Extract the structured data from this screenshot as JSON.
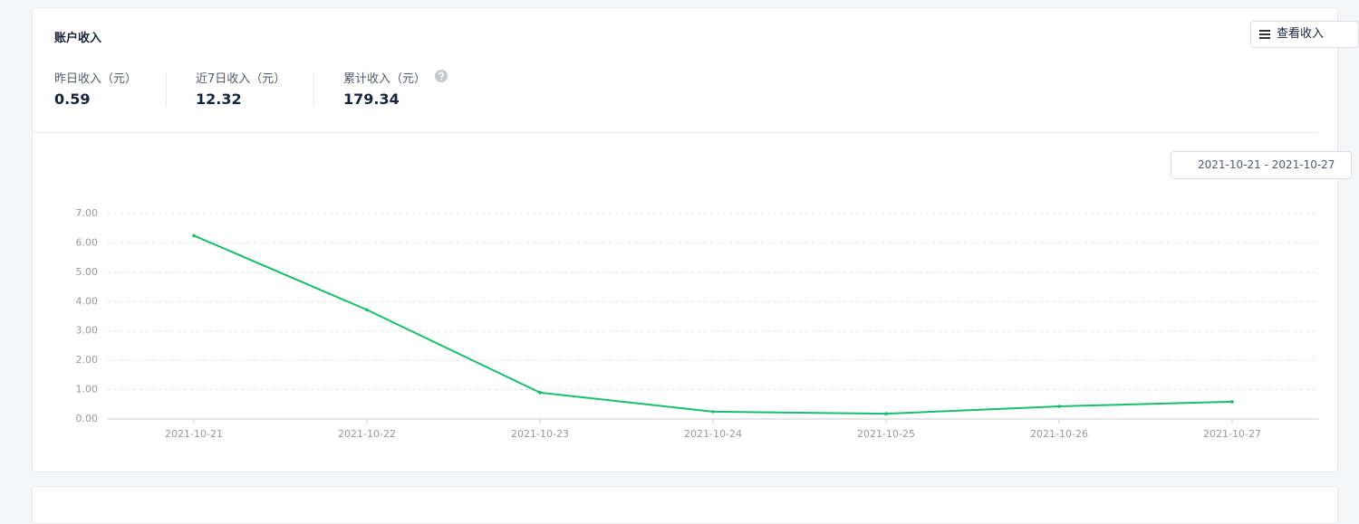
{
  "header": {
    "title": "账户收入",
    "button": "查看收入"
  },
  "stats": [
    {
      "label": "昨日收入（元）",
      "value": 0.59
    },
    {
      "label": "近7日收入（元）",
      "value": 12.32
    },
    {
      "label": "累计收入（元）",
      "value": 179.34
    }
  ],
  "date_range": "2021-10-21 - 2021-10-27",
  "chart_data": {
    "type": "line",
    "categories": [
      "2021-10-21",
      "2021-10-22",
      "2021-10-23",
      "2021-10-24",
      "2021-10-25",
      "2021-10-26",
      "2021-10-27"
    ],
    "values": [
      6.25,
      3.72,
      0.9,
      0.25,
      0.18,
      0.43,
      0.59
    ],
    "color": "#19be6b",
    "ylim": [
      0,
      7
    ],
    "yticks": [
      {
        "value": 0,
        "label": "0.00"
      },
      {
        "value": 1,
        "label": "1.00"
      },
      {
        "value": 2,
        "label": "2.00"
      },
      {
        "value": 3,
        "label": "3.00"
      },
      {
        "value": 4,
        "label": "4.00"
      },
      {
        "value": 5,
        "label": "5.00"
      },
      {
        "value": 6,
        "label": "6.00"
      },
      {
        "value": 7,
        "label": "7.00"
      }
    ],
    "grid": true
  }
}
